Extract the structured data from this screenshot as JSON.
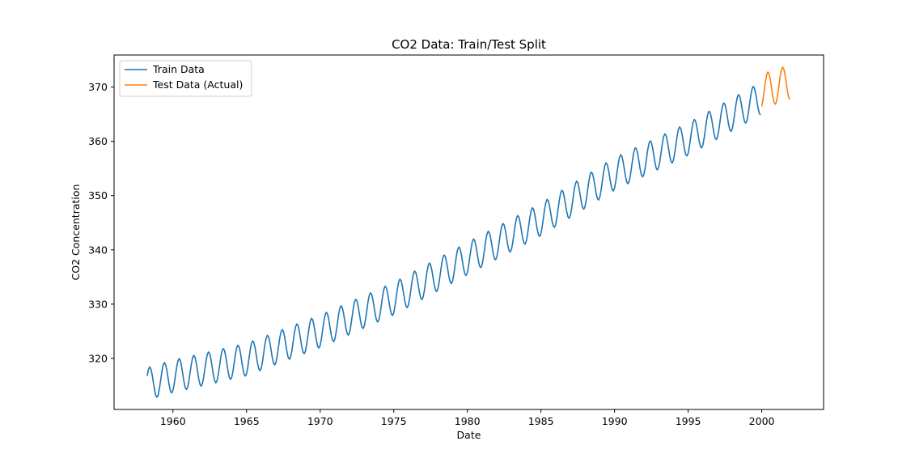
{
  "chart_data": {
    "type": "line",
    "title": "CO2 Data: Train/Test Split",
    "xlabel": "Date",
    "ylabel": "CO2 Concentration",
    "xlim": [
      1956.0,
      2004.2
    ],
    "ylim": [
      310.6,
      375.9
    ],
    "xticks": [
      1960,
      1965,
      1970,
      1975,
      1980,
      1985,
      1990,
      1995,
      2000
    ],
    "yticks": [
      320,
      330,
      340,
      350,
      360,
      370
    ],
    "grid": false,
    "legend_position": "top-left",
    "colors": {
      "train": "#1f77b4",
      "test": "#ff7f0e"
    },
    "series": [
      {
        "name": "Train Data",
        "color": "#1f77b4",
        "generator": {
          "start": 1958.25,
          "end": 1999.92,
          "step": 0.0833333,
          "baseline_points": [
            [
              1958.25,
              315.3
            ],
            [
              1960.0,
              316.7
            ],
            [
              1965.0,
              319.8
            ],
            [
              1970.0,
              325.0
            ],
            [
              1975.0,
              331.0
            ],
            [
              1980.0,
              338.4
            ],
            [
              1985.0,
              345.6
            ],
            [
              1990.0,
              354.0
            ],
            [
              1995.0,
              360.4
            ],
            [
              2000.0,
              368.0
            ]
          ],
          "seasonal_amplitude": 3.0,
          "seasonal_peak_month": 5
        }
      },
      {
        "name": "Test Data (Actual)",
        "color": "#ff7f0e",
        "generator": {
          "start": 2000.0,
          "end": 2001.92,
          "step": 0.0833333,
          "baseline_points": [
            [
              2000.0,
              369.2
            ],
            [
              2002.0,
              371.0
            ]
          ],
          "seasonal_amplitude": 3.2,
          "seasonal_peak_month": 5
        }
      }
    ]
  }
}
